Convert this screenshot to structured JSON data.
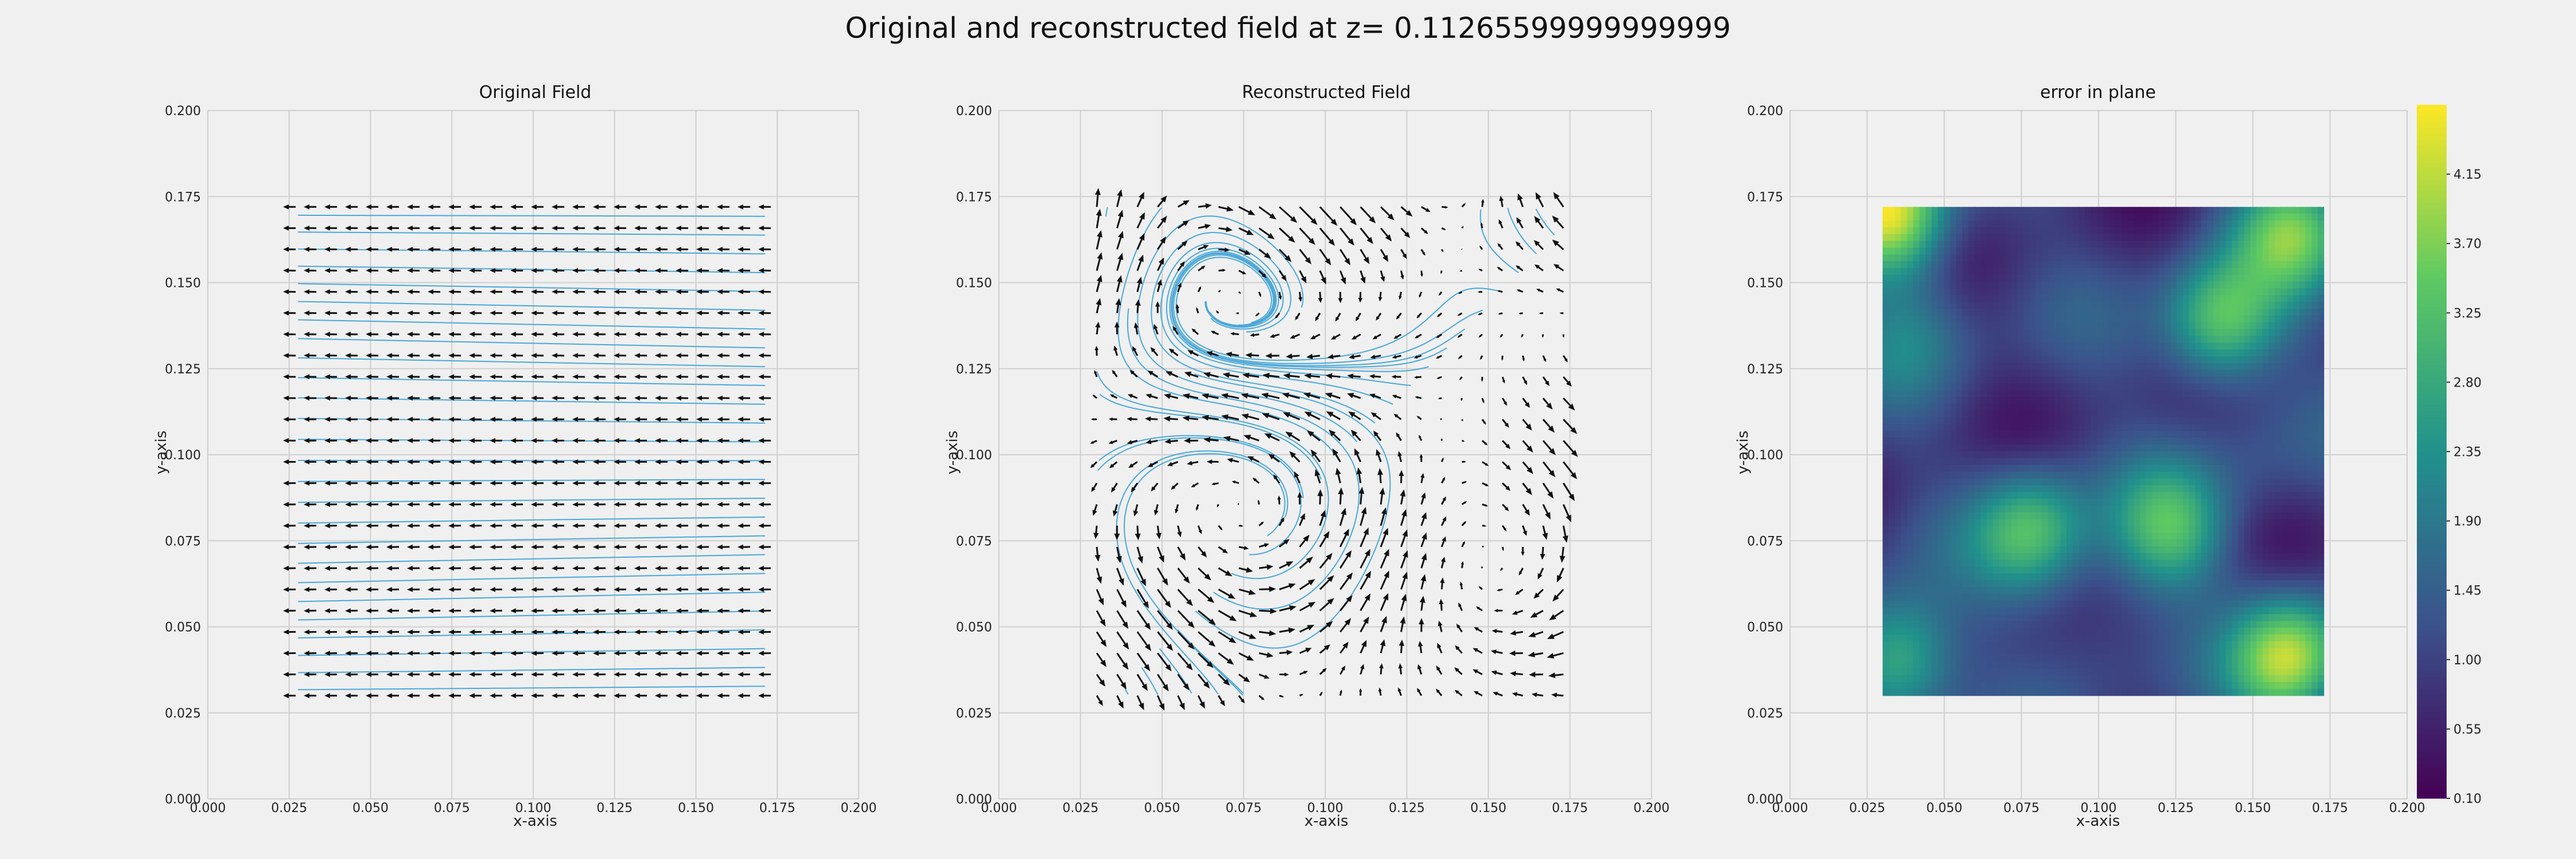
{
  "figure": {
    "title": "Original and reconstructed field at z= 0.11265599999999999"
  },
  "colors": {
    "background": "#f0f0f0",
    "grid": "#cfcfcf",
    "streamline": "#4aa8d8",
    "arrow": "#111111",
    "colormap": [
      "#440154",
      "#3b528b",
      "#21918c",
      "#5ec962",
      "#fde725"
    ]
  },
  "chart_data": [
    {
      "type": "quiver+streamplot",
      "title": "Original Field",
      "xlabel": "x-axis",
      "ylabel": "y-axis",
      "xlim": [
        0,
        0.2
      ],
      "ylim": [
        0,
        0.2
      ],
      "xticks": [
        "0.000",
        "0.025",
        "0.050",
        "0.075",
        "0.100",
        "0.125",
        "0.150",
        "0.175",
        "0.200"
      ],
      "yticks": [
        "0.000",
        "0.025",
        "0.050",
        "0.075",
        "0.100",
        "0.125",
        "0.150",
        "0.175",
        "0.200"
      ],
      "grid": true,
      "field_domain": {
        "x": [
          0.027,
          0.173
        ],
        "y": [
          0.03,
          0.172
        ]
      },
      "quiver_grid": {
        "nx": 24,
        "ny": 24
      },
      "field": "uniform horizontal flow (u = -1, v ≈ 0)"
    },
    {
      "type": "quiver+streamplot",
      "title": "Reconstructed Field",
      "xlabel": "x-axis",
      "ylabel": "y-axis",
      "xlim": [
        0,
        0.2
      ],
      "ylim": [
        0,
        0.2
      ],
      "xticks": [
        "0.000",
        "0.025",
        "0.050",
        "0.075",
        "0.100",
        "0.125",
        "0.150",
        "0.175",
        "0.200"
      ],
      "yticks": [
        "0.000",
        "0.025",
        "0.050",
        "0.075",
        "0.100",
        "0.125",
        "0.150",
        "0.175",
        "0.200"
      ],
      "grid": true,
      "field_domain": {
        "x": [
          0.03,
          0.173
        ],
        "y": [
          0.03,
          0.172
        ]
      },
      "quiver_grid": {
        "nx": 24,
        "ny": 24
      },
      "field": "vortical reconstructed flow with mixed directions"
    },
    {
      "type": "heatmap",
      "title": "error in plane",
      "xlabel": "x-axis",
      "ylabel": "y-axis",
      "xlim": [
        0,
        0.2
      ],
      "ylim": [
        0,
        0.2
      ],
      "xticks": [
        "0.000",
        "0.025",
        "0.050",
        "0.075",
        "0.100",
        "0.125",
        "0.150",
        "0.175",
        "0.200"
      ],
      "yticks": [
        "0.000",
        "0.025",
        "0.050",
        "0.075",
        "0.100",
        "0.125",
        "0.150",
        "0.175",
        "0.200"
      ],
      "grid": true,
      "field_domain": {
        "x": [
          0.03,
          0.173
        ],
        "y": [
          0.03,
          0.172
        ]
      },
      "colorbar": {
        "min": 0.1,
        "max": 4.6,
        "ticks": [
          "0.10",
          "0.55",
          "1.00",
          "1.45",
          "1.90",
          "2.35",
          "2.80",
          "3.25",
          "3.70",
          "4.15"
        ]
      },
      "base_value": 0.9,
      "hotspots": [
        {
          "x": 0.033,
          "y": 0.17,
          "value": 4.5
        },
        {
          "x": 0.163,
          "y": 0.165,
          "value": 3.3
        },
        {
          "x": 0.14,
          "y": 0.138,
          "value": 3.5
        },
        {
          "x": 0.04,
          "y": 0.135,
          "value": 1.8
        },
        {
          "x": 0.078,
          "y": 0.078,
          "value": 3.2
        },
        {
          "x": 0.123,
          "y": 0.078,
          "value": 3.0
        },
        {
          "x": 0.035,
          "y": 0.04,
          "value": 3.3
        },
        {
          "x": 0.162,
          "y": 0.041,
          "value": 4.1
        },
        {
          "x": 0.1,
          "y": 0.05,
          "value": 1.4
        },
        {
          "x": 0.15,
          "y": 0.1,
          "value": 1.2
        }
      ]
    }
  ]
}
